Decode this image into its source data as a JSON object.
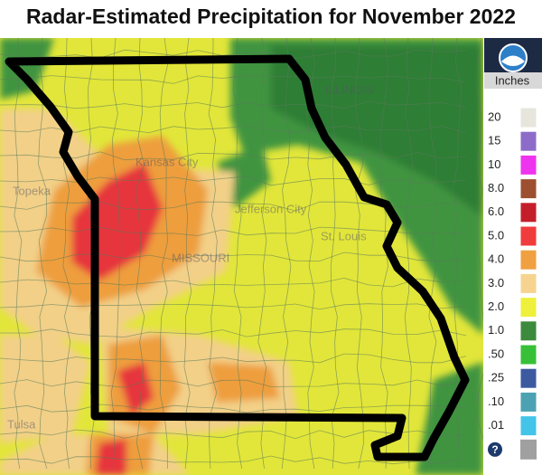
{
  "title": "Radar-Estimated Precipitation for November 2022",
  "legend": {
    "unit": "Inches",
    "help": "?",
    "items": [
      {
        "label": "20",
        "color": "#e6e6dc"
      },
      {
        "label": "15",
        "color": "#8c6cc8"
      },
      {
        "label": "10",
        "color": "#ee34ee"
      },
      {
        "label": "8.0",
        "color": "#9c5030"
      },
      {
        "label": "6.0",
        "color": "#c41e2a"
      },
      {
        "label": "5.0",
        "color": "#f03c3c"
      },
      {
        "label": "4.0",
        "color": "#f0a040"
      },
      {
        "label": "3.0",
        "color": "#f6d490"
      },
      {
        "label": "2.0",
        "color": "#eef03c"
      },
      {
        "label": "1.0",
        "color": "#3c8a3c"
      },
      {
        "label": ".50",
        "color": "#38c038"
      },
      {
        "label": ".25",
        "color": "#3c5aa0"
      },
      {
        "label": ".10",
        "color": "#4ca2b2"
      },
      {
        "label": ".01",
        "color": "#44c4e8"
      }
    ]
  },
  "map_labels": [
    "Topeka",
    "Kansas City",
    "Jefferson City",
    "St. Louis",
    "MISSOURI",
    "ILLINOIS",
    "Tulsa"
  ]
}
